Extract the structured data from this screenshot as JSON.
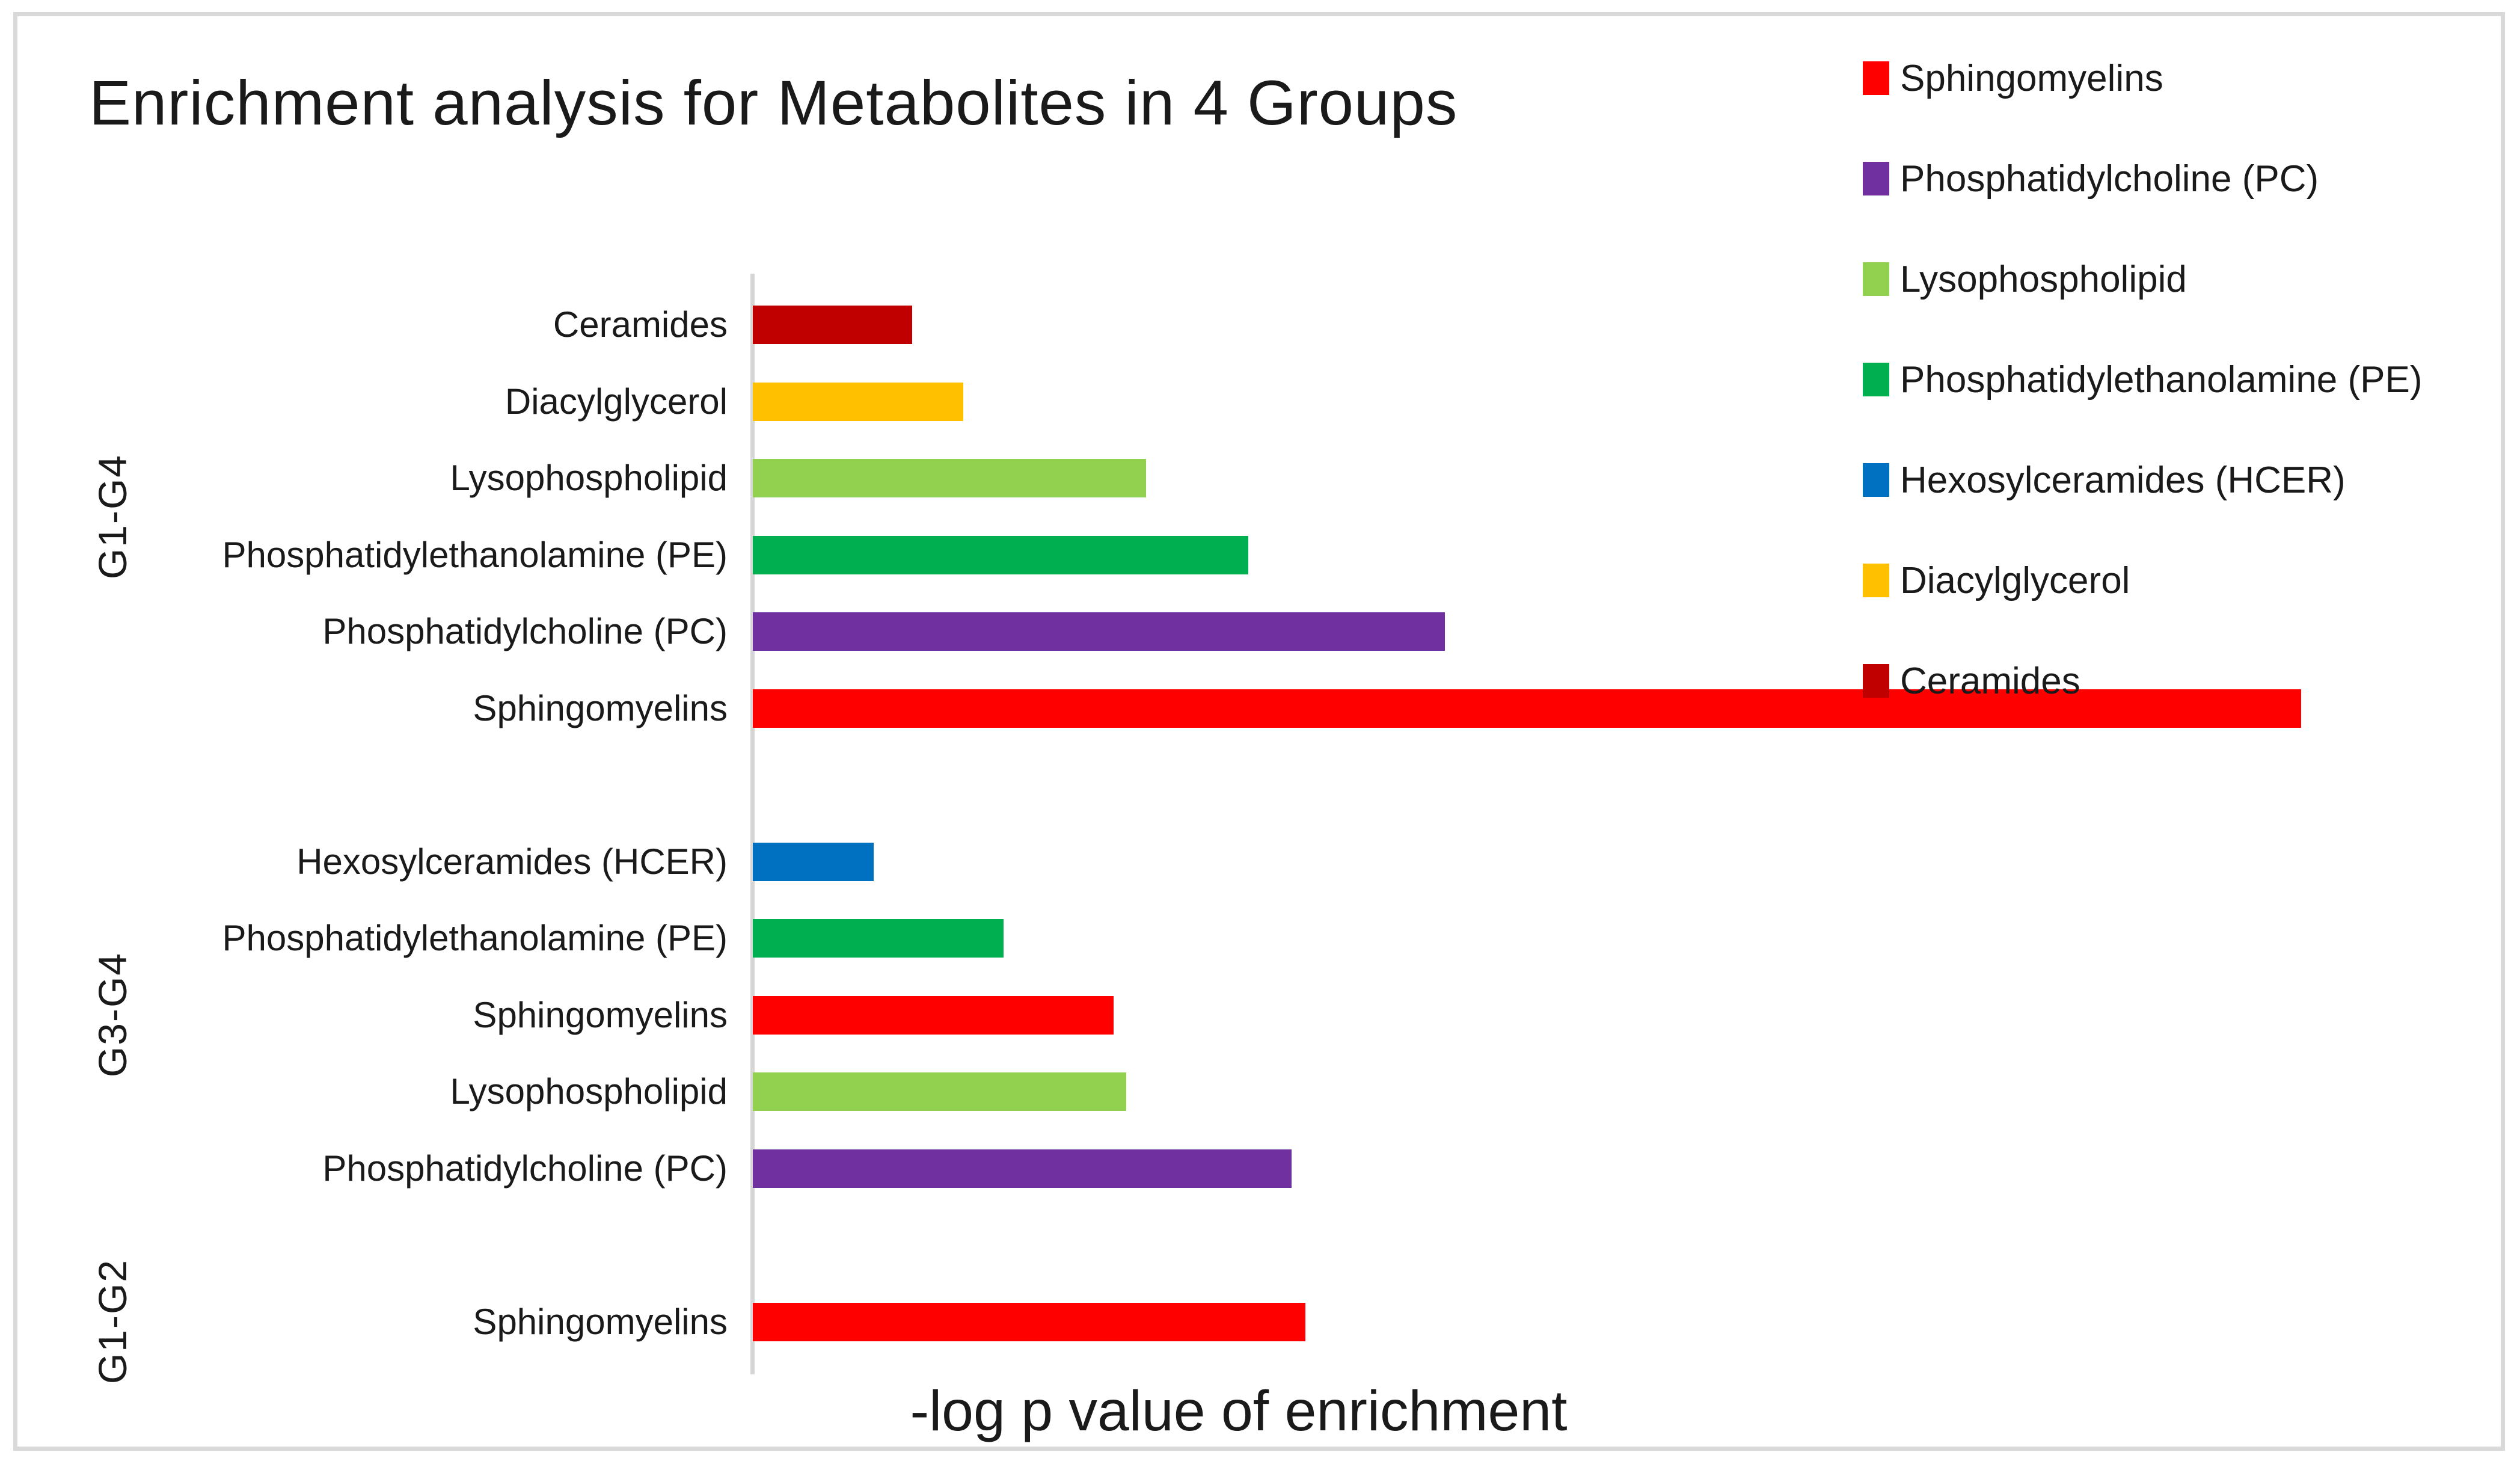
{
  "figure": {
    "background": "#ffffff",
    "border_color": "#d9d9d9",
    "axis_line_color": "#d6d6d6",
    "text_color": "#1a1a1a"
  },
  "chart_data": {
    "type": "bar",
    "orientation": "horizontal",
    "title": "Enrichment analysis for Metabolites in 4 Groups",
    "xlabel": "-log p value of enrichment",
    "x_axis": {
      "tick_labels_visible": false,
      "gridlines": false,
      "range_relative": [
        0,
        113
      ]
    },
    "value_units": "relative bar length, percent of longest bar (axis shows no numeric ticks)",
    "legend_position": "right-overlay",
    "colors": {
      "sphingomyelins": "#ff0000",
      "phosphatidylcholine_pc": "#7030a0",
      "lysophospholipid": "#92d050",
      "phosphatidylethanolamine_pe": "#00b050",
      "hexosylceramides_hcer": "#0070c0",
      "diacylglycerol": "#ffc000",
      "ceramides": "#c00000"
    },
    "groups": [
      {
        "name": "G1-G4",
        "bars": [
          {
            "label": "Ceramides",
            "color_key": "ceramides",
            "value": 10.3
          },
          {
            "label": "Diacylglycerol",
            "color_key": "diacylglycerol",
            "value": 13.6
          },
          {
            "label": "Lysophospholipid",
            "color_key": "lysophospholipid",
            "value": 25.4
          },
          {
            "label": "Phosphatidylethanolamine (PE)",
            "color_key": "phosphatidylethanolamine_pe",
            "value": 32.0
          },
          {
            "label": "Phosphatidylcholine (PC)",
            "color_key": "phosphatidylcholine_pc",
            "value": 44.7
          },
          {
            "label": "Sphingomyelins",
            "color_key": "sphingomyelins",
            "value": 100.0
          }
        ]
      },
      {
        "name": "G3-G4",
        "bars": [
          {
            "label": "Hexosylceramides (HCER)",
            "color_key": "hexosylceramides_hcer",
            "value": 7.8
          },
          {
            "label": "Phosphatidylethanolamine (PE)",
            "color_key": "phosphatidylethanolamine_pe",
            "value": 16.2
          },
          {
            "label": "Sphingomyelins",
            "color_key": "sphingomyelins",
            "value": 23.3
          },
          {
            "label": "Lysophospholipid",
            "color_key": "lysophospholipid",
            "value": 24.1
          },
          {
            "label": "Phosphatidylcholine (PC)",
            "color_key": "phosphatidylcholine_pc",
            "value": 34.8
          }
        ]
      },
      {
        "name": "G1-G2",
        "bars": [
          {
            "label": "Sphingomyelins",
            "color_key": "sphingomyelins",
            "value": 35.7
          }
        ]
      }
    ],
    "legend": [
      {
        "label": "Sphingomyelins",
        "color_key": "sphingomyelins"
      },
      {
        "label": "Phosphatidylcholine (PC)",
        "color_key": "phosphatidylcholine_pc"
      },
      {
        "label": "Lysophospholipid",
        "color_key": "lysophospholipid"
      },
      {
        "label": "Phosphatidylethanolamine (PE)",
        "color_key": "phosphatidylethanolamine_pe"
      },
      {
        "label": "Hexosylceramides (HCER)",
        "color_key": "hexosylceramides_hcer"
      },
      {
        "label": "Diacylglycerol",
        "color_key": "diacylglycerol"
      },
      {
        "label": "Ceramides",
        "color_key": "ceramides"
      }
    ]
  }
}
